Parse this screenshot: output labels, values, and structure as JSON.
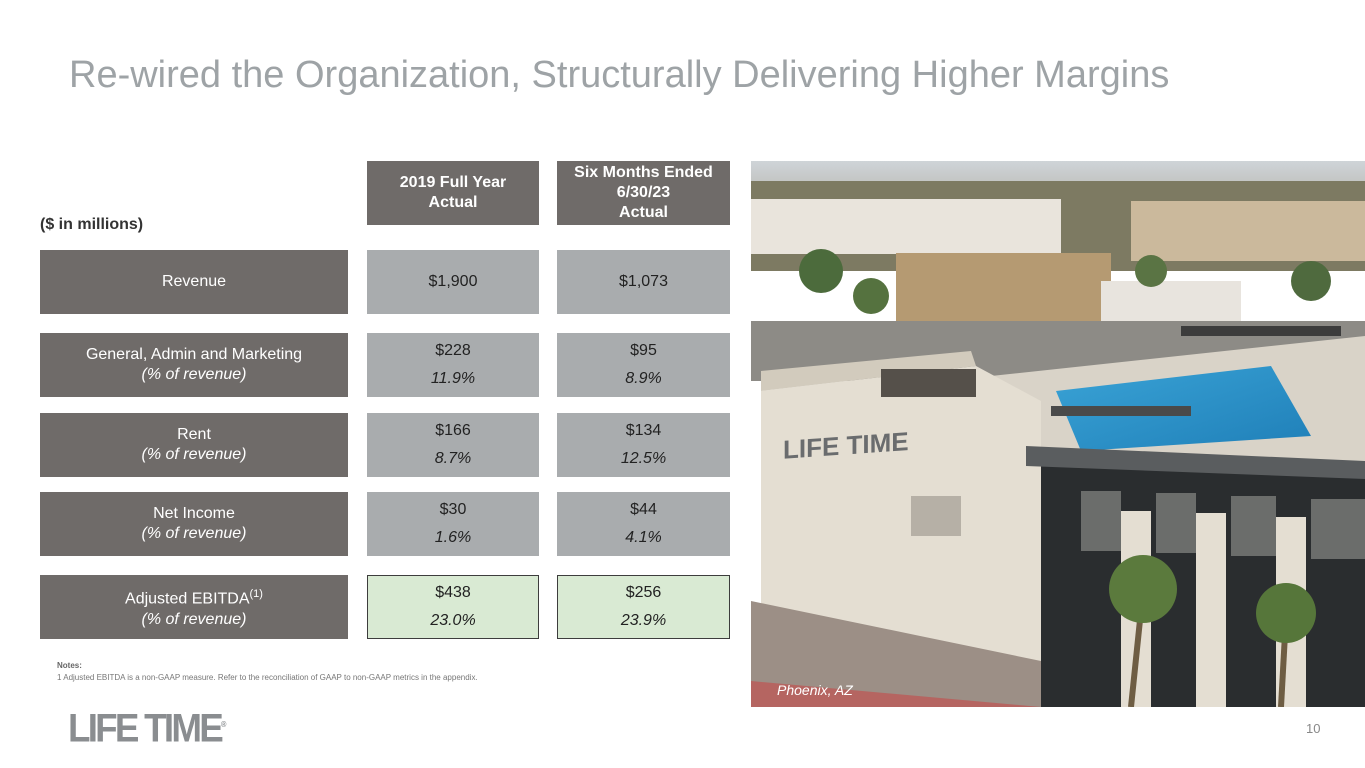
{
  "title": "Re-wired the Organization, Structurally Delivering Higher Margins",
  "units_label": "($ in millions)",
  "columns": [
    "2019 Full Year Actual",
    "Six Months Ended 6/30/23 Actual"
  ],
  "column_lines": [
    [
      "2019 Full Year",
      "Actual"
    ],
    [
      "Six Months Ended",
      "6/30/23",
      "Actual"
    ]
  ],
  "rows": [
    {
      "label": "Revenue",
      "sub": "",
      "c1": "$1,900",
      "c1_pct": "",
      "c2": "$1,073",
      "c2_pct": ""
    },
    {
      "label": "General, Admin and Marketing",
      "sub": "(% of revenue)",
      "c1": "$228",
      "c1_pct": "11.9%",
      "c2": "$95",
      "c2_pct": "8.9%"
    },
    {
      "label": "Rent",
      "sub": "(% of revenue)",
      "c1": "$166",
      "c1_pct": "8.7%",
      "c2": "$134",
      "c2_pct": "12.5%"
    },
    {
      "label": "Net Income",
      "sub": "(% of revenue)",
      "c1": "$30",
      "c1_pct": "1.6%",
      "c2": "$44",
      "c2_pct": "4.1%"
    },
    {
      "label": "Adjusted EBITDA",
      "label_sup": "(1)",
      "sub": "(% of revenue)",
      "c1": "$438",
      "c1_pct": "23.0%",
      "c2": "$256",
      "c2_pct": "23.9%"
    }
  ],
  "notes": {
    "heading": "Notes:",
    "items": [
      "1   Adjusted EBITDA is a non-GAAP measure.  Refer to the reconciliation of GAAP to non-GAAP metrics in the appendix."
    ]
  },
  "photo": {
    "caption": "Phoenix, AZ",
    "building_sign": "LIFE TIME"
  },
  "logo": {
    "text": "LIFE TIME",
    "mark": "®"
  },
  "page_number": "10",
  "colors": {
    "header_bg": "#6f6b69",
    "cell_bg": "#a9acae",
    "highlight_bg": "#d9ead3",
    "title": "#9ea3a6"
  }
}
